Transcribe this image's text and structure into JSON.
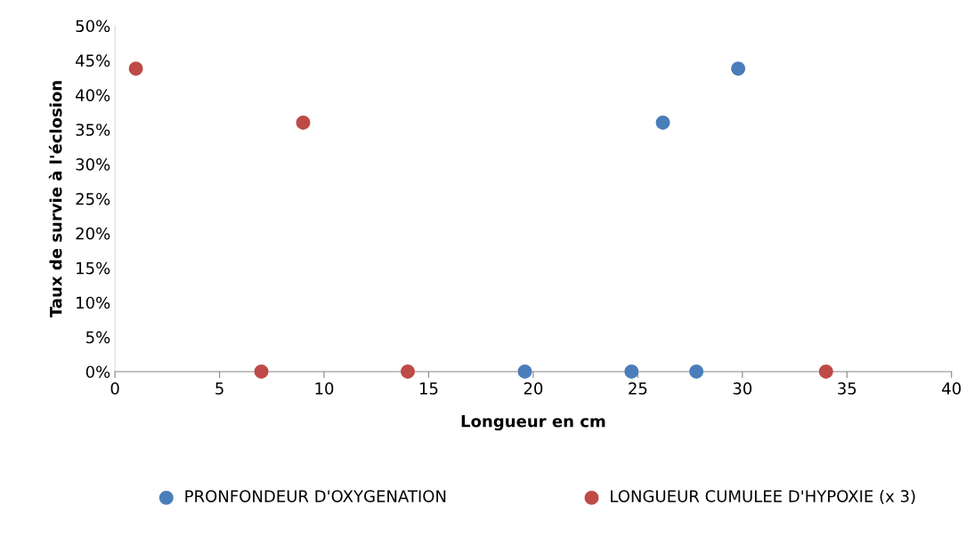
{
  "chart_data": {
    "type": "scatter",
    "xlabel": "Longueur en cm",
    "ylabel": "Taux de survie à l'éclosion",
    "xlim": [
      0,
      40
    ],
    "xticks": [
      0,
      5,
      10,
      15,
      20,
      25,
      30,
      35,
      40
    ],
    "ylim": [
      0,
      50
    ],
    "yticks": [
      {
        "value": 0,
        "label": "0%"
      },
      {
        "value": 5,
        "label": "5%"
      },
      {
        "value": 10,
        "label": "10%"
      },
      {
        "value": 15,
        "label": "15%"
      },
      {
        "value": 20,
        "label": "20%"
      },
      {
        "value": 25,
        "label": "25%"
      },
      {
        "value": 30,
        "label": "30%"
      },
      {
        "value": 35,
        "label": "35%"
      },
      {
        "value": 40,
        "label": "40%"
      },
      {
        "value": 45,
        "label": "45%"
      },
      {
        "value": 50,
        "label": "50%"
      }
    ],
    "grid": false,
    "legend": "bottom",
    "marker": "circle",
    "series": [
      {
        "name": "PRONFONDEUR D'OXYGENATION",
        "color": "#4a7ebb",
        "x": [
          19.6,
          24.7,
          27.8,
          26.2,
          29.8
        ],
        "values": [
          0,
          0,
          0,
          36,
          43.8
        ]
      },
      {
        "name": "LONGUEUR CUMULEE D'HYPOXIE (x 3)",
        "color": "#be4b48",
        "x": [
          1,
          7,
          9,
          14,
          34
        ],
        "values": [
          43.8,
          0,
          36,
          0,
          0
        ]
      }
    ]
  }
}
